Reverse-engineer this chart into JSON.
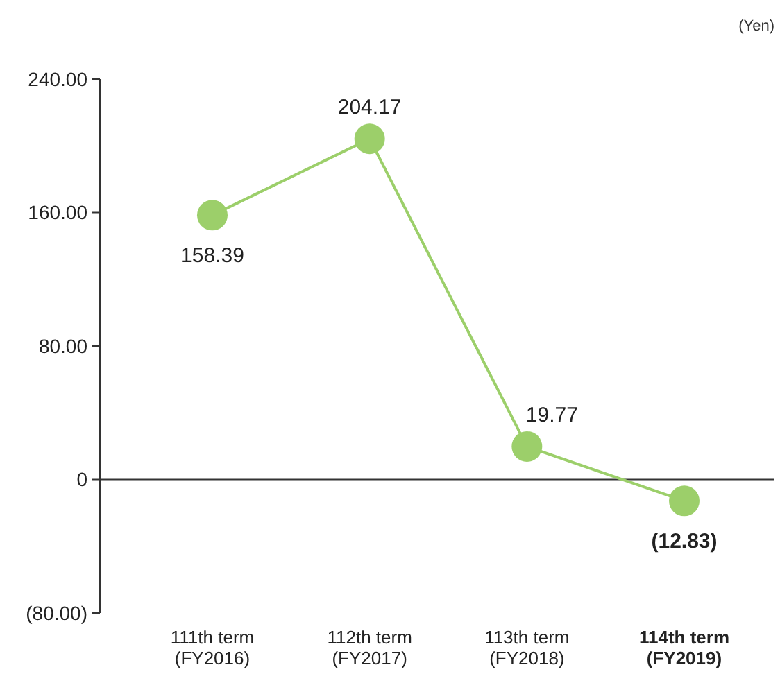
{
  "chart_data": {
    "type": "line",
    "ylabel": "(Yen)",
    "categories": [
      "111th term\n(FY2016)",
      "112th term\n(FY2017)",
      "113th term\n(FY2018)",
      "114th term\n(FY2019)"
    ],
    "series": [
      {
        "color": "#9ccf6a",
        "values": [
          158.39,
          204.17,
          19.77,
          -12.83
        ],
        "value_labels": [
          "158.39",
          "204.17",
          "19.77",
          "(12.83)"
        ]
      }
    ],
    "ylim": [
      -80,
      240
    ],
    "yticks": [
      {
        "value": -80,
        "label": "(80.00)"
      },
      0,
      {
        "value": 80,
        "label": "80.00"
      },
      {
        "value": 160,
        "label": "160.00"
      },
      {
        "value": 240,
        "label": "240.00"
      }
    ],
    "ref_lines": [
      {
        "axis": "y",
        "value": 0,
        "color": "#333333"
      }
    ],
    "marker": "circle",
    "line_style": "solid"
  }
}
